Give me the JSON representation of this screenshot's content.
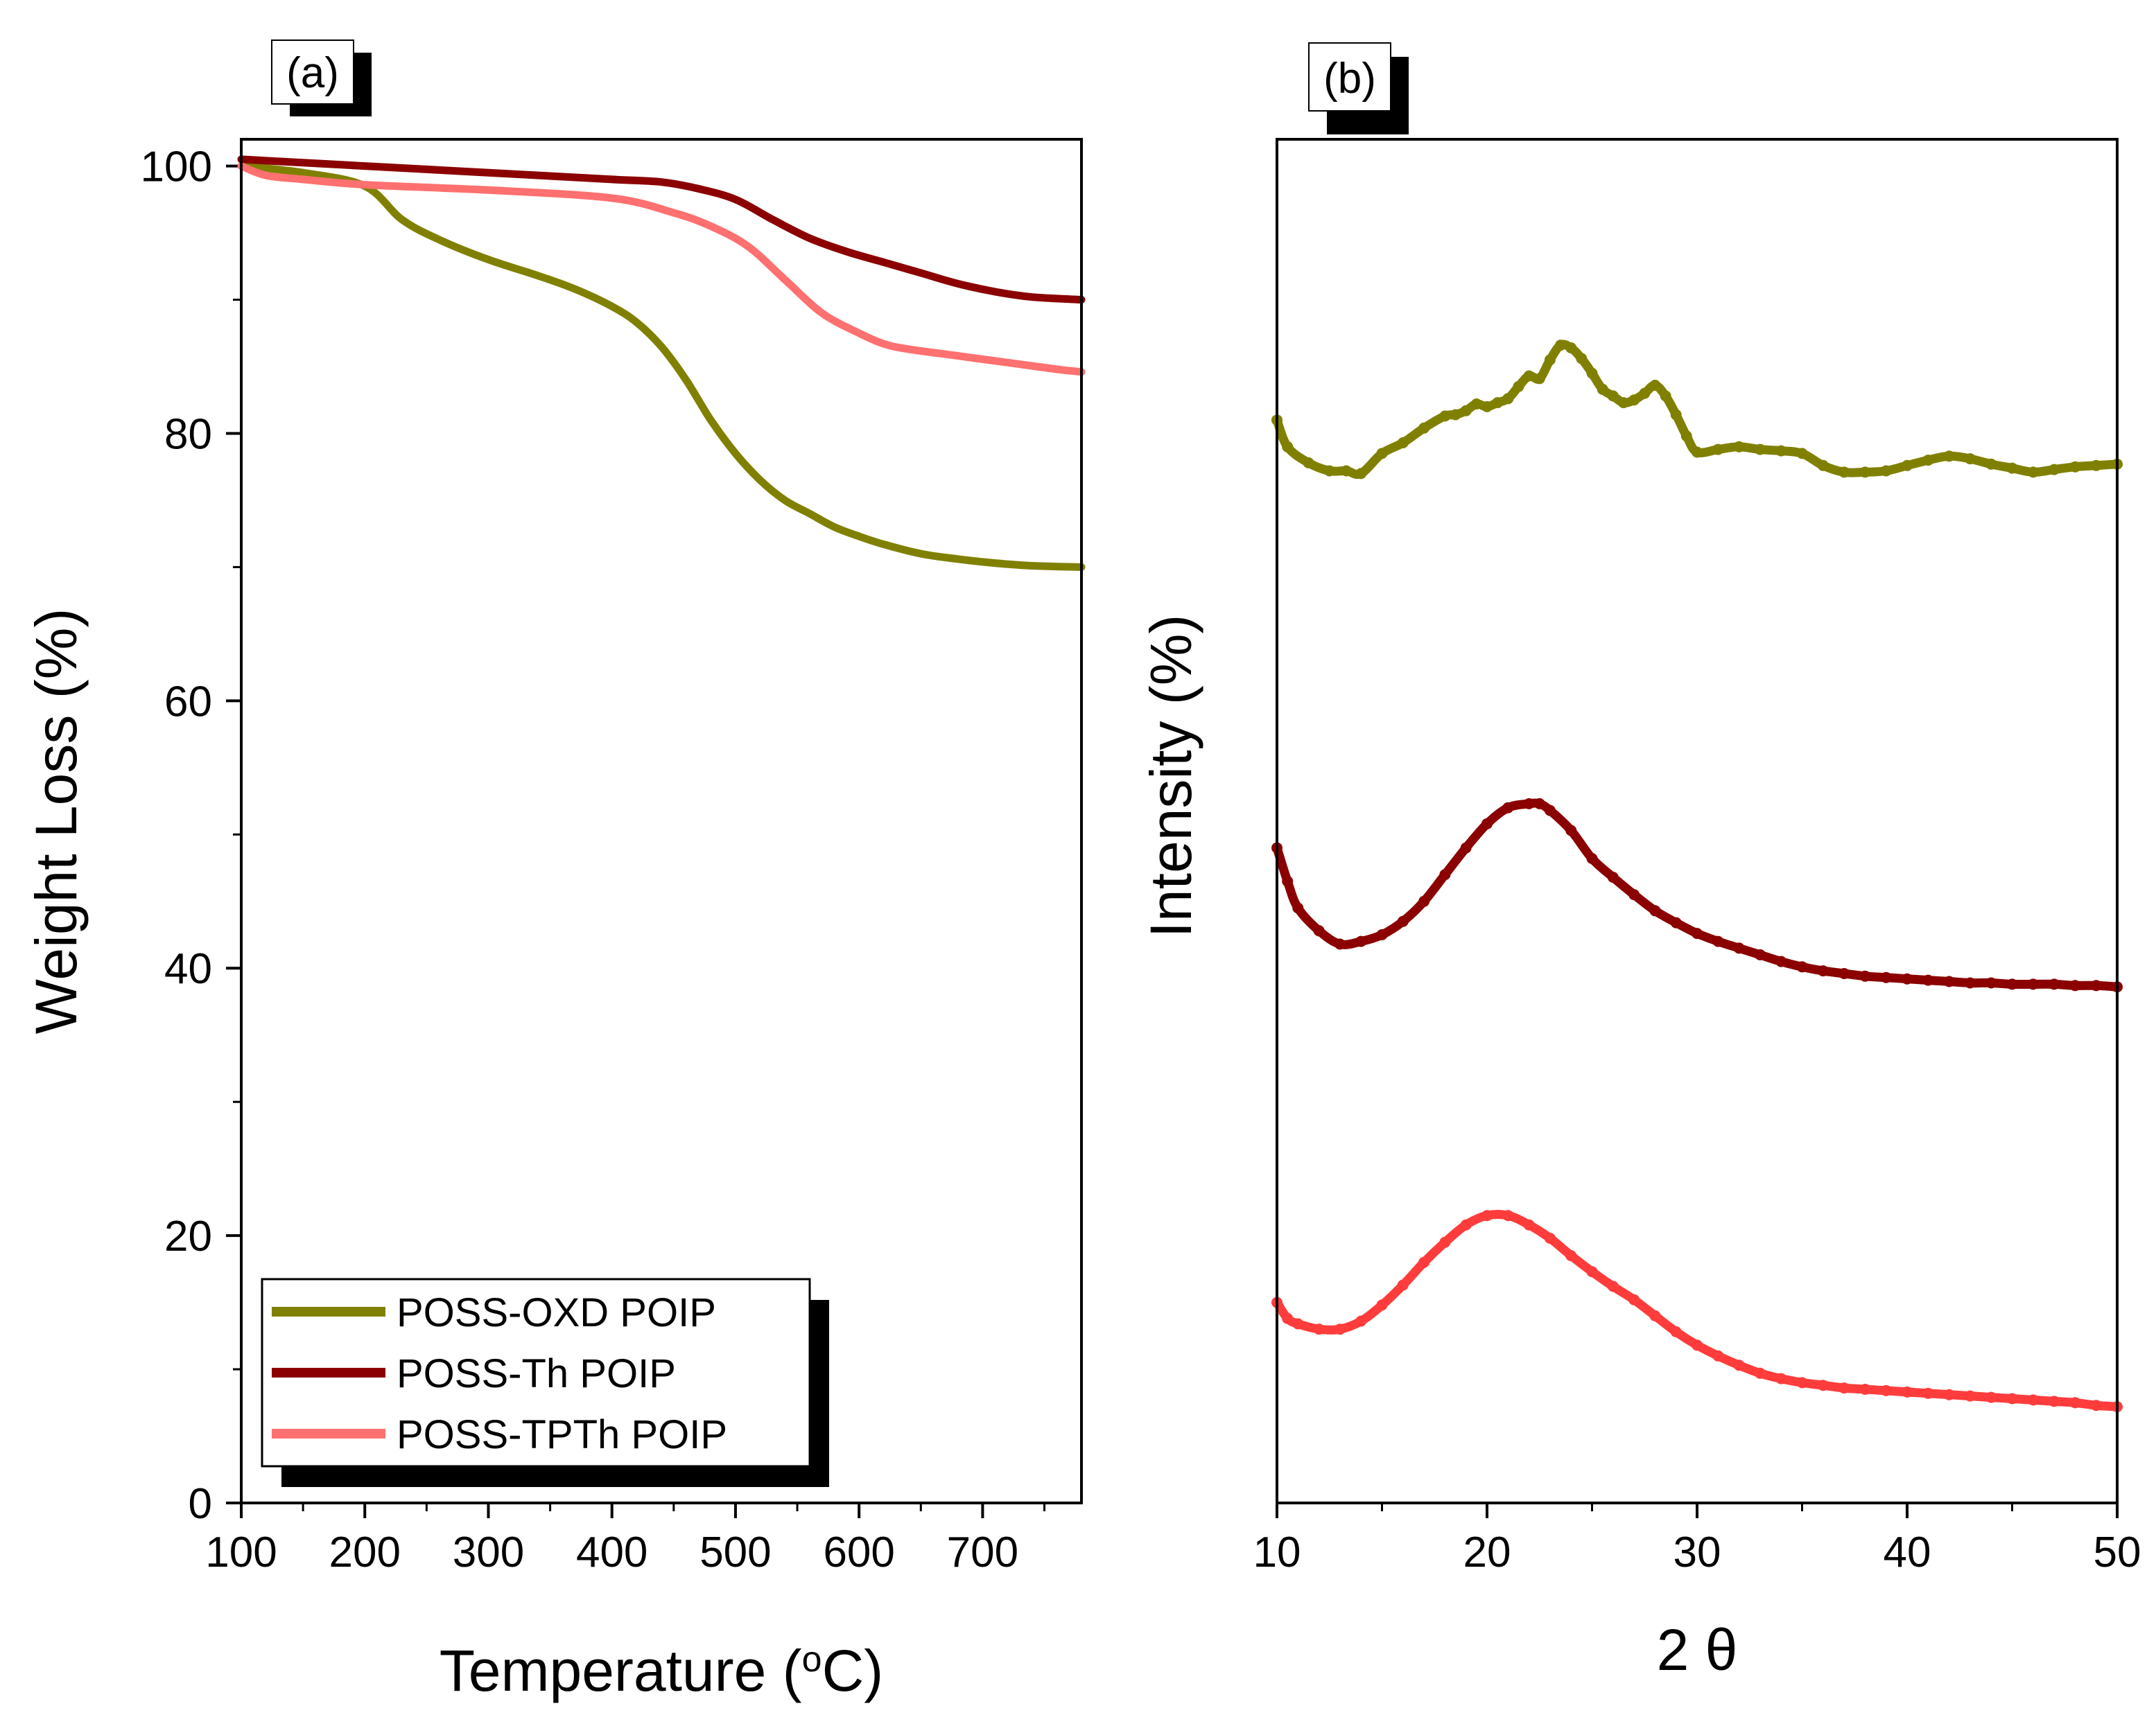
{
  "colors": {
    "oxd": "#808000",
    "th": "#8b0000",
    "tpth_tga": "#ff7070",
    "tpth_xrd": "#ff3c3c",
    "axis": "#000000"
  },
  "chart_data": [
    {
      "panel_label": "(a)",
      "type": "line",
      "xlabel_main": "Temperature (",
      "xlabel_sup": "o",
      "xlabel_tail": "C)",
      "ylabel": "Weight Loss (%)",
      "xlim": [
        100,
        780
      ],
      "ylim": [
        0,
        102
      ],
      "xticks": [
        100,
        200,
        300,
        400,
        500,
        600,
        700
      ],
      "yticks": [
        0,
        20,
        40,
        60,
        80,
        100
      ],
      "legend_position": "bottom-left",
      "series": [
        {
          "name": "POSS-OXD POIP",
          "color_key": "oxd",
          "x": [
            100,
            150,
            200,
            230,
            260,
            300,
            340,
            370,
            400,
            420,
            440,
            460,
            480,
            500,
            520,
            540,
            560,
            580,
            600,
            620,
            650,
            680,
            710,
            740,
            780
          ],
          "y": [
            100,
            99.5,
            98.5,
            96,
            94.5,
            93,
            91.8,
            90.8,
            89.5,
            88.3,
            86.5,
            84,
            81,
            78.5,
            76.5,
            75,
            74,
            73,
            72.3,
            71.7,
            71,
            70.6,
            70.3,
            70.1,
            70
          ]
        },
        {
          "name": "POSS-Th POIP",
          "color_key": "th",
          "x": [
            100,
            200,
            300,
            400,
            440,
            470,
            500,
            530,
            560,
            590,
            620,
            650,
            680,
            710,
            740,
            780
          ],
          "y": [
            100.5,
            100,
            99.5,
            99,
            98.8,
            98.3,
            97.5,
            96,
            94.6,
            93.6,
            92.8,
            92,
            91.2,
            90.6,
            90.2,
            90
          ]
        },
        {
          "name": "POSS-TPTh POIP",
          "color_key": "tpth_tga",
          "x": [
            100,
            120,
            150,
            200,
            300,
            400,
            450,
            480,
            510,
            540,
            570,
            600,
            620,
            640,
            680,
            720,
            760,
            780
          ],
          "y": [
            100,
            99.3,
            99,
            98.6,
            98.2,
            97.6,
            96.5,
            95.5,
            94,
            91.5,
            89,
            87.5,
            86.7,
            86.3,
            85.8,
            85.3,
            84.8,
            84.6
          ]
        }
      ]
    },
    {
      "panel_label": "(b)",
      "type": "line",
      "xlabel": "2 θ",
      "ylabel": "Intensity (%)",
      "xlim": [
        10,
        50
      ],
      "ylim": [
        0,
        102
      ],
      "xticks": [
        10,
        20,
        30,
        40,
        50
      ],
      "yticks": [],
      "legend_position": "none",
      "series": [
        {
          "name": "POSS-OXD POIP",
          "color_key": "oxd",
          "x": [
            10,
            10.5,
            11.5,
            12.5,
            13.3,
            14,
            15,
            16,
            17,
            18,
            18.5,
            19,
            19.5,
            20,
            20.5,
            21,
            21.5,
            22,
            22.5,
            23,
            23.5,
            24,
            24.5,
            25,
            25.5,
            26,
            26.5,
            27,
            27.5,
            28,
            28.5,
            29,
            29.5,
            30,
            31,
            32,
            33,
            34,
            35,
            36,
            37,
            38,
            39,
            40,
            41,
            42,
            43,
            44,
            45,
            46,
            47,
            48,
            49,
            50
          ],
          "y": [
            81,
            79,
            77.8,
            77.2,
            77.2,
            77,
            78.5,
            79.3,
            80.4,
            81.3,
            81.4,
            81.7,
            82.2,
            82,
            82.3,
            82.6,
            83.5,
            84.3,
            84.1,
            85.5,
            86.6,
            86.4,
            85.6,
            84.5,
            83.3,
            82.8,
            82.3,
            82.5,
            83,
            83.6,
            82.8,
            81.4,
            79.8,
            78.6,
            78.8,
            79,
            78.8,
            78.7,
            78.5,
            77.6,
            77.1,
            77.1,
            77.2,
            77.6,
            78,
            78.3,
            78.1,
            77.7,
            77.4,
            77.1,
            77.3,
            77.5,
            77.6,
            77.7
          ]
        },
        {
          "name": "POSS-Th POIP",
          "color_key": "th",
          "x": [
            10,
            10.5,
            11,
            12,
            13,
            14,
            15,
            16,
            17,
            18,
            19,
            20,
            21,
            22,
            22.5,
            23,
            24,
            25,
            26,
            27,
            28,
            29,
            30,
            31,
            32,
            33,
            34,
            35,
            36,
            37,
            38,
            39,
            40,
            41,
            42,
            43,
            44,
            45,
            46,
            47,
            48,
            49,
            50
          ],
          "y": [
            49,
            46.5,
            44.5,
            42.8,
            41.8,
            42,
            42.5,
            43.5,
            45,
            47,
            49,
            50.8,
            52,
            52.3,
            52.3,
            51.8,
            50.3,
            48.2,
            46.8,
            45.5,
            44.3,
            43.4,
            42.6,
            42,
            41.5,
            41,
            40.5,
            40.1,
            39.8,
            39.6,
            39.4,
            39.3,
            39.2,
            39.1,
            39,
            38.9,
            38.9,
            38.8,
            38.8,
            38.8,
            38.7,
            38.7,
            38.6
          ]
        },
        {
          "name": "POSS-TPTh POIP",
          "color_key": "tpth_xrd",
          "x": [
            10,
            10.5,
            11,
            12,
            13,
            14,
            15,
            16,
            17,
            18,
            19,
            20,
            21,
            22,
            23,
            24,
            25,
            26,
            27,
            28,
            29,
            30,
            31,
            32,
            33,
            34,
            35,
            36,
            37,
            38,
            39,
            40,
            41,
            42,
            43,
            44,
            45,
            46,
            47,
            48,
            49,
            50
          ],
          "y": [
            15,
            13.8,
            13.4,
            13,
            13,
            13.6,
            14.8,
            16.3,
            18,
            19.5,
            20.8,
            21.5,
            21.5,
            20.8,
            19.8,
            18.5,
            17.3,
            16.2,
            15.2,
            14,
            12.8,
            11.8,
            11,
            10.3,
            9.7,
            9.3,
            9,
            8.8,
            8.6,
            8.5,
            8.4,
            8.3,
            8.2,
            8.1,
            8,
            7.9,
            7.8,
            7.7,
            7.6,
            7.5,
            7.3,
            7.2
          ]
        }
      ]
    }
  ]
}
